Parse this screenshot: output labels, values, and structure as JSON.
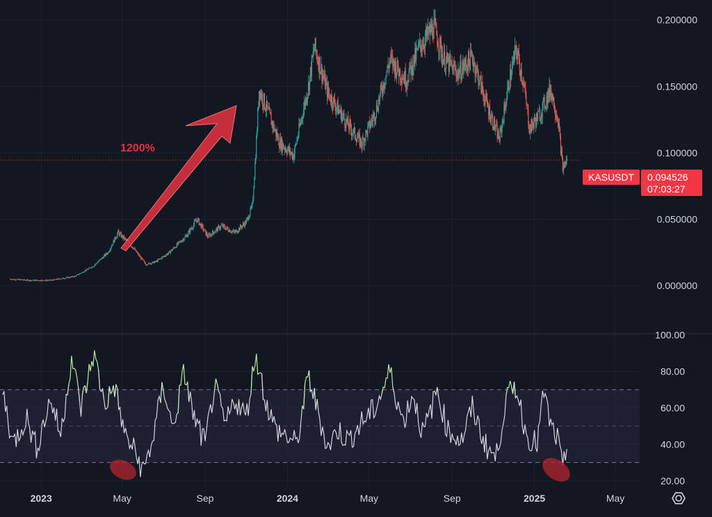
{
  "chart_data": {
    "symbol": "KASUSDT",
    "last_price": "0.094526",
    "countdown": "07:03:27",
    "annotation": "1200%",
    "colors": {
      "background": "#131722",
      "up": "#26a69a",
      "down": "#ef5350",
      "rsi_line": "#d1d4dc",
      "rsi_overbought": "#b8e6a8",
      "price_tag": "#f23645",
      "arrow": "#e0323f",
      "rsi_band": "#2a2740"
    },
    "price_panel": {
      "type": "candlestick",
      "ylim": [
        -0.035,
        0.215
      ],
      "y_ticks": [
        "0.000000",
        "0.050000",
        "0.100000",
        "0.150000",
        "0.200000"
      ],
      "points": [
        [
          "2022-11-15",
          0.005
        ],
        [
          "2022-12-15",
          0.004
        ],
        [
          "2023-01-15",
          0.004
        ],
        [
          "2023-02-20",
          0.007
        ],
        [
          "2023-03-20",
          0.015
        ],
        [
          "2023-04-10",
          0.025
        ],
        [
          "2023-04-25",
          0.04
        ],
        [
          "2023-05-15",
          0.03
        ],
        [
          "2023-06-05",
          0.016
        ],
        [
          "2023-06-20",
          0.018
        ],
        [
          "2023-07-10",
          0.025
        ],
        [
          "2023-08-05",
          0.038
        ],
        [
          "2023-08-20",
          0.05
        ],
        [
          "2023-09-05",
          0.037
        ],
        [
          "2023-09-25",
          0.045
        ],
        [
          "2023-10-15",
          0.04
        ],
        [
          "2023-11-01",
          0.048
        ],
        [
          "2023-11-10",
          0.06
        ],
        [
          "2023-11-15",
          0.1
        ],
        [
          "2023-11-20",
          0.148
        ],
        [
          "2023-12-05",
          0.128
        ],
        [
          "2023-12-20",
          0.108
        ],
        [
          "2024-01-10",
          0.098
        ],
        [
          "2024-02-01",
          0.15
        ],
        [
          "2024-02-10",
          0.18
        ],
        [
          "2024-03-01",
          0.145
        ],
        [
          "2024-04-01",
          0.12
        ],
        [
          "2024-04-20",
          0.107
        ],
        [
          "2024-05-10",
          0.13
        ],
        [
          "2024-06-01",
          0.17
        ],
        [
          "2024-06-25",
          0.155
        ],
        [
          "2024-07-15",
          0.18
        ],
        [
          "2024-08-05",
          0.195
        ],
        [
          "2024-08-20",
          0.17
        ],
        [
          "2024-09-10",
          0.16
        ],
        [
          "2024-10-01",
          0.172
        ],
        [
          "2024-10-20",
          0.14
        ],
        [
          "2024-11-10",
          0.11
        ],
        [
          "2024-11-25",
          0.155
        ],
        [
          "2024-12-05",
          0.178
        ],
        [
          "2024-12-15",
          0.155
        ],
        [
          "2024-12-25",
          0.118
        ],
        [
          "2025-01-10",
          0.13
        ],
        [
          "2025-01-25",
          0.148
        ],
        [
          "2025-02-05",
          0.125
        ],
        [
          "2025-02-12",
          0.088
        ],
        [
          "2025-02-18",
          0.095
        ]
      ]
    },
    "rsi_panel": {
      "type": "line",
      "ylim": [
        15,
        100
      ],
      "y_ticks": [
        "20.00",
        "40.00",
        "60.00",
        "80.00",
        "100.00"
      ],
      "levels": [
        30,
        50,
        70
      ],
      "overbought": 70,
      "points": [
        [
          "2022-11-05",
          70
        ],
        [
          "2022-11-20",
          40
        ],
        [
          "2022-12-10",
          55
        ],
        [
          "2022-12-25",
          38
        ],
        [
          "2023-01-15",
          65
        ],
        [
          "2023-01-30",
          45
        ],
        [
          "2023-02-15",
          88
        ],
        [
          "2023-03-01",
          60
        ],
        [
          "2023-03-20",
          90
        ],
        [
          "2023-04-05",
          62
        ],
        [
          "2023-04-20",
          72
        ],
        [
          "2023-05-05",
          45
        ],
        [
          "2023-05-20",
          36
        ],
        [
          "2023-06-01",
          25
        ],
        [
          "2023-06-15",
          42
        ],
        [
          "2023-07-01",
          73
        ],
        [
          "2023-07-15",
          48
        ],
        [
          "2023-08-01",
          80
        ],
        [
          "2023-08-15",
          55
        ],
        [
          "2023-09-01",
          40
        ],
        [
          "2023-09-15",
          72
        ],
        [
          "2023-10-01",
          50
        ],
        [
          "2023-10-15",
          65
        ],
        [
          "2023-11-01",
          55
        ],
        [
          "2023-11-15",
          90
        ],
        [
          "2023-12-01",
          62
        ],
        [
          "2023-12-15",
          48
        ],
        [
          "2024-01-01",
          44
        ],
        [
          "2024-01-15",
          40
        ],
        [
          "2024-02-01",
          78
        ],
        [
          "2024-02-15",
          58
        ],
        [
          "2024-03-01",
          38
        ],
        [
          "2024-03-15",
          48
        ],
        [
          "2024-04-01",
          42
        ],
        [
          "2024-04-20",
          52
        ],
        [
          "2024-05-10",
          60
        ],
        [
          "2024-06-01",
          80
        ],
        [
          "2024-06-20",
          52
        ],
        [
          "2024-07-05",
          68
        ],
        [
          "2024-07-20",
          45
        ],
        [
          "2024-08-10",
          70
        ],
        [
          "2024-08-25",
          48
        ],
        [
          "2024-09-15",
          42
        ],
        [
          "2024-10-01",
          60
        ],
        [
          "2024-10-20",
          40
        ],
        [
          "2024-11-05",
          32
        ],
        [
          "2024-11-20",
          65
        ],
        [
          "2024-12-05",
          72
        ],
        [
          "2024-12-20",
          45
        ],
        [
          "2025-01-05",
          40
        ],
        [
          "2025-01-15",
          69
        ],
        [
          "2025-01-25",
          50
        ],
        [
          "2025-02-05",
          42
        ],
        [
          "2025-02-12",
          25
        ],
        [
          "2025-02-18",
          38
        ]
      ]
    },
    "x_axis": {
      "range": [
        "2022-11-01",
        "2025-06-06"
      ],
      "labels": [
        {
          "text": "2023",
          "date": "2023-01-01"
        },
        {
          "text": "May",
          "date": "2023-05-01"
        },
        {
          "text": "Sep",
          "date": "2023-09-01"
        },
        {
          "text": "2024",
          "date": "2024-01-01"
        },
        {
          "text": "May",
          "date": "2024-05-01"
        },
        {
          "text": "Sep",
          "date": "2024-09-01"
        },
        {
          "text": "2025",
          "date": "2025-01-01"
        },
        {
          "text": "May",
          "date": "2025-05-01"
        }
      ]
    }
  }
}
